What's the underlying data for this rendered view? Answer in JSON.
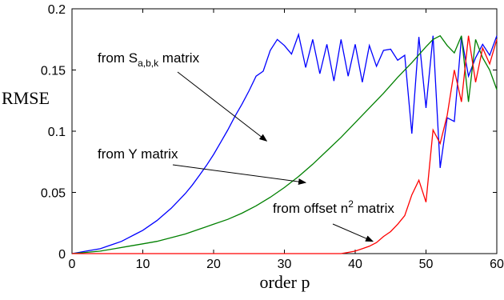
{
  "chart_data": {
    "type": "line",
    "xlabel": "order p",
    "ylabel": "RMSE",
    "xlim": [
      0,
      60
    ],
    "ylim": [
      0,
      0.2
    ],
    "xticks": [
      0,
      10,
      20,
      30,
      40,
      50,
      60
    ],
    "yticks": [
      0,
      0.05,
      0.1,
      0.15,
      0.2
    ],
    "xtick_labels": [
      "0",
      "10",
      "20",
      "30",
      "40",
      "50",
      "60"
    ],
    "ytick_labels": [
      "0",
      "0.05",
      "0.1",
      "0.15",
      "0.2"
    ],
    "grid": false,
    "series": [
      {
        "color": "#0000ff",
        "x": [
          0,
          1,
          2,
          3,
          4,
          5,
          6,
          7,
          8,
          9,
          10,
          11,
          12,
          13,
          14,
          15,
          16,
          17,
          18,
          19,
          20,
          21,
          22,
          23,
          24,
          25,
          26,
          27,
          28,
          29,
          30,
          31,
          32,
          33,
          34,
          35,
          36,
          37,
          38,
          39,
          40,
          41,
          42,
          43,
          44,
          45,
          46,
          47,
          48,
          49,
          50,
          51,
          52,
          53,
          54,
          55,
          56,
          57,
          58,
          59,
          60
        ],
        "y": [
          0,
          0.001,
          0.002,
          0.003,
          0.004,
          0.006,
          0.008,
          0.01,
          0.013,
          0.016,
          0.019,
          0.023,
          0.027,
          0.032,
          0.037,
          0.043,
          0.049,
          0.056,
          0.064,
          0.072,
          0.081,
          0.091,
          0.101,
          0.112,
          0.122,
          0.133,
          0.145,
          0.149,
          0.166,
          0.175,
          0.17,
          0.163,
          0.179,
          0.152,
          0.175,
          0.147,
          0.171,
          0.141,
          0.175,
          0.145,
          0.171,
          0.14,
          0.17,
          0.153,
          0.166,
          0.167,
          0.158,
          0.162,
          0.098,
          0.177,
          0.119,
          0.178,
          0.07,
          0.111,
          0.108,
          0.177,
          0.145,
          0.16,
          0.171,
          0.162,
          0.178
        ]
      },
      {
        "color": "#008000",
        "x": [
          0,
          2,
          4,
          6,
          8,
          10,
          12,
          14,
          16,
          18,
          20,
          22,
          24,
          26,
          28,
          30,
          32,
          34,
          36,
          38,
          40,
          42,
          44,
          46,
          48,
          50,
          51,
          52,
          53,
          54,
          55,
          56,
          57,
          58,
          59,
          60
        ],
        "y": [
          0,
          0.001,
          0.002,
          0.004,
          0.006,
          0.008,
          0.01,
          0.013,
          0.016,
          0.02,
          0.024,
          0.028,
          0.033,
          0.039,
          0.046,
          0.054,
          0.063,
          0.073,
          0.084,
          0.095,
          0.107,
          0.119,
          0.131,
          0.144,
          0.156,
          0.169,
          0.175,
          0.178,
          0.17,
          0.164,
          0.178,
          0.124,
          0.175,
          0.16,
          0.15,
          0.134
        ]
      },
      {
        "color": "#ff0000",
        "x": [
          0,
          5,
          10,
          15,
          20,
          25,
          30,
          35,
          38,
          39,
          40,
          41,
          42,
          43,
          44,
          45,
          46,
          47,
          48,
          49,
          50,
          51,
          52,
          53,
          54,
          55,
          56,
          57,
          58,
          59,
          60
        ],
        "y": [
          0,
          0,
          0,
          0,
          0,
          0,
          0,
          0,
          0,
          0.001,
          0.002,
          0.004,
          0.006,
          0.009,
          0.014,
          0.018,
          0.024,
          0.031,
          0.048,
          0.06,
          0.042,
          0.101,
          0.09,
          0.113,
          0.15,
          0.124,
          0.178,
          0.14,
          0.168,
          0.155,
          0.175
        ]
      }
    ],
    "annotations": [
      {
        "main": "from S",
        "sub": "a,b,k",
        "suffix": " matrix",
        "target": [
          27.5,
          0.092
        ]
      },
      {
        "main": "from Y matrix",
        "sub": "",
        "suffix": "",
        "target": [
          33,
          0.058
        ]
      },
      {
        "main": "from offset n",
        "sup": "2",
        "suffix": " matrix",
        "target": [
          42.5,
          0.01
        ]
      }
    ]
  }
}
